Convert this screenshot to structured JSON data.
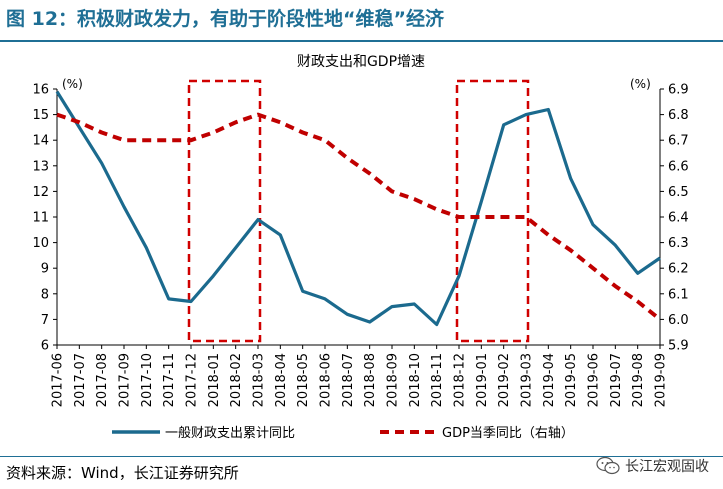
{
  "figure": {
    "title": "图 12：积极财政发力，有助于阶段性地“维稳”经济",
    "source": "资料来源：Wind，长江证券研究所",
    "watermark": "长江宏观固收",
    "watermark_icon": "wechat-icon"
  },
  "colors": {
    "title": "#1f6f95",
    "series_fiscal": "#1b6a8e",
    "series_gdp": "#c00000",
    "highlight_box": "#d00000"
  },
  "chart_data": {
    "type": "line",
    "title": "财政支出和GDP增速",
    "left_unit": "(%)",
    "right_unit": "(%)",
    "x": [
      "2017-06",
      "2017-07",
      "2017-08",
      "2017-09",
      "2017-10",
      "2017-11",
      "2017-12",
      "2018-01",
      "2018-02",
      "2018-03",
      "2018-04",
      "2018-05",
      "2018-06",
      "2018-07",
      "2018-08",
      "2018-09",
      "2018-10",
      "2018-11",
      "2018-12",
      "2019-01",
      "2019-02",
      "2019-03",
      "2019-04",
      "2019-05",
      "2019-06",
      "2019-07",
      "2019-08",
      "2019-09"
    ],
    "left_axis": {
      "ylim": [
        6,
        16
      ],
      "ticks": [
        6,
        7,
        8,
        9,
        10,
        11,
        12,
        13,
        14,
        15,
        16
      ]
    },
    "right_axis": {
      "ylim": [
        5.9,
        6.9
      ],
      "ticks": [
        "5.9",
        "6.0",
        "6.1",
        "6.2",
        "6.3",
        "6.4",
        "6.5",
        "6.6",
        "6.7",
        "6.8",
        "6.9"
      ]
    },
    "series": [
      {
        "name": "一般财政支出累计同比",
        "axis": "left",
        "style": "solid",
        "values": [
          15.9,
          14.5,
          13.1,
          11.4,
          9.8,
          7.8,
          7.7,
          8.7,
          9.8,
          10.9,
          10.3,
          8.1,
          7.8,
          7.2,
          6.9,
          7.5,
          7.6,
          6.8,
          8.7,
          11.6,
          14.6,
          15.0,
          15.2,
          12.5,
          10.7,
          9.9,
          8.8,
          9.4
        ]
      },
      {
        "name": "GDP当季同比（右轴）",
        "axis": "right",
        "style": "dashed",
        "values": [
          6.8,
          6.77,
          6.73,
          6.7,
          6.7,
          6.7,
          6.7,
          6.73,
          6.77,
          6.8,
          6.77,
          6.73,
          6.7,
          6.63,
          6.57,
          6.5,
          6.47,
          6.43,
          6.4,
          6.4,
          6.4,
          6.4,
          6.33,
          6.27,
          6.2,
          6.13,
          6.07,
          6.0
        ]
      }
    ],
    "highlight_periods": [
      {
        "from": "2017-12",
        "to": "2018-03"
      },
      {
        "from": "2018-12",
        "to": "2019-03"
      }
    ],
    "legend_placement": "bottom"
  }
}
